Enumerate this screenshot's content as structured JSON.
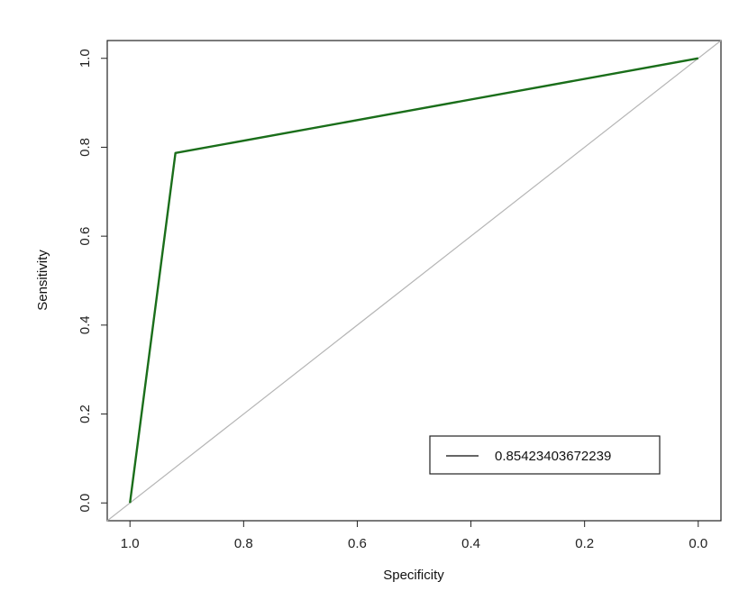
{
  "chart_data": {
    "type": "line",
    "xlabel": "Specificity",
    "ylabel": "Sensitivity",
    "x_reversed": true,
    "xlim": [
      1.04,
      -0.04
    ],
    "ylim": [
      -0.04,
      1.04
    ],
    "x_ticks": [
      "1.0",
      "0.8",
      "0.6",
      "0.4",
      "0.2",
      "0.0"
    ],
    "y_ticks": [
      "0.0",
      "0.2",
      "0.4",
      "0.6",
      "0.8",
      "1.0"
    ],
    "x_tick_values": [
      1.0,
      0.8,
      0.6,
      0.4,
      0.2,
      0.0
    ],
    "y_tick_values": [
      0.0,
      0.2,
      0.4,
      0.6,
      0.8,
      1.0
    ],
    "series": [
      {
        "name": "0.85423403672239",
        "color": "#1a6e1a",
        "x": [
          1.0,
          0.92,
          0.0
        ],
        "y": [
          0.0,
          0.787,
          1.0
        ]
      }
    ],
    "reference_line": {
      "color": "#b5b5b5",
      "x": [
        1.04,
        -0.04
      ],
      "y": [
        -0.04,
        1.04
      ]
    },
    "legend": {
      "position": "bottom-right",
      "entries": [
        "0.85423403672239"
      ],
      "line_color": "#333333"
    },
    "grid": false
  }
}
